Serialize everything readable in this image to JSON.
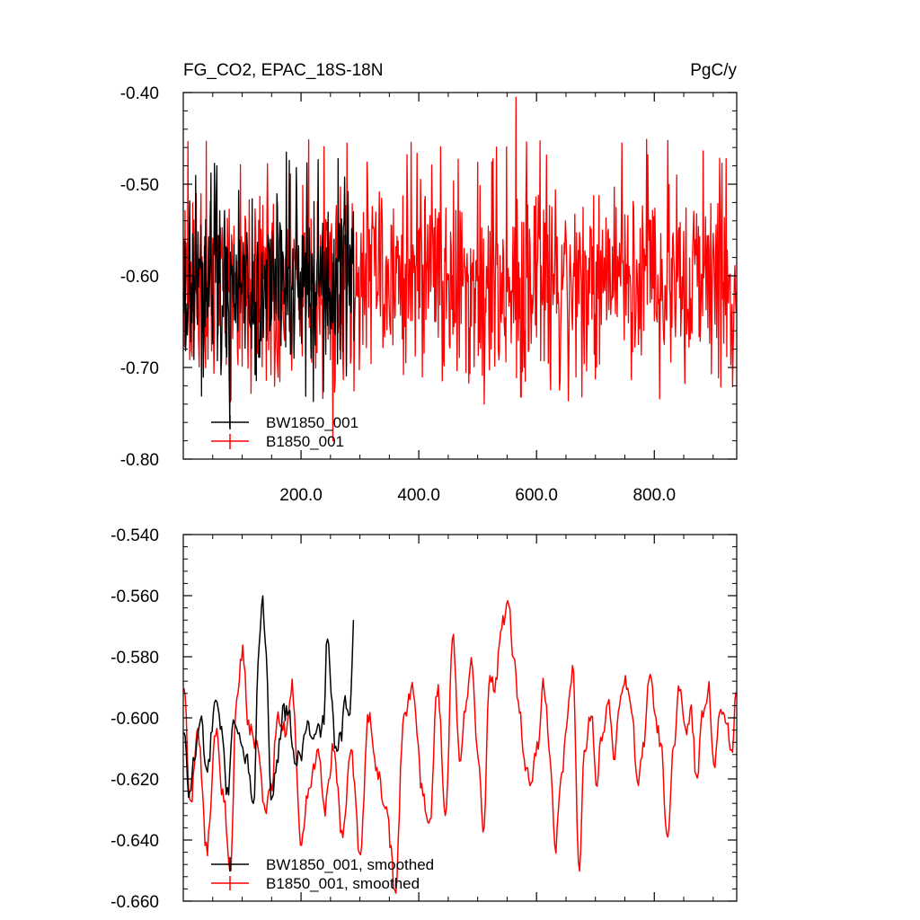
{
  "chart_data": [
    {
      "type": "line",
      "title": "FG_CO2, EPAC_18S-18N",
      "units": "PgC/y",
      "xlabel": "",
      "ylabel": "",
      "xlim": [
        0,
        940
      ],
      "ylim": [
        -0.8,
        -0.4
      ],
      "xticks": [
        200,
        400,
        600,
        800
      ],
      "xtick_labels": [
        "200.0",
        "400.0",
        "600.0",
        "800.0"
      ],
      "yticks": [
        -0.4,
        -0.5,
        -0.6,
        -0.7,
        -0.8
      ],
      "ytick_labels": [
        "-0.40",
        "-0.50",
        "-0.60",
        "-0.70",
        "-0.80"
      ],
      "legend_position": "bottom-left",
      "series": [
        {
          "name": "BW1850_001",
          "color": "#000000",
          "x_range": [
            1,
            290
          ],
          "mean": -0.61,
          "typical_range": [
            -0.7,
            -0.49
          ],
          "min": -0.765,
          "max": -0.465,
          "note_values": "annual values, noisy"
        },
        {
          "name": "B1850_001",
          "color": "#ff0000",
          "x_range": [
            1,
            940
          ],
          "mean": -0.605,
          "typical_range": [
            -0.68,
            -0.52
          ],
          "min": -0.78,
          "max": -0.405
        }
      ]
    },
    {
      "type": "line",
      "title": "",
      "xlabel": "",
      "ylabel": "",
      "xlim": [
        0,
        940
      ],
      "ylim": [
        -0.66,
        -0.54
      ],
      "yticks": [
        -0.54,
        -0.56,
        -0.58,
        -0.6,
        -0.62,
        -0.64,
        -0.66
      ],
      "ytick_labels": [
        "-0.540",
        "-0.560",
        "-0.580",
        "-0.600",
        "-0.620",
        "-0.640",
        "-0.660"
      ],
      "legend_position": "bottom-left",
      "series": [
        {
          "name": "BW1850_001, smoothed",
          "color": "#000000",
          "x_range": [
            1,
            290
          ],
          "anchors": [
            [
              1,
              -0.605
            ],
            [
              10,
              -0.625
            ],
            [
              20,
              -0.612
            ],
            [
              30,
              -0.6
            ],
            [
              40,
              -0.618
            ],
            [
              55,
              -0.595
            ],
            [
              65,
              -0.605
            ],
            [
              75,
              -0.625
            ],
            [
              85,
              -0.6
            ],
            [
              100,
              -0.61
            ],
            [
              110,
              -0.615
            ],
            [
              120,
              -0.63
            ],
            [
              128,
              -0.578
            ],
            [
              135,
              -0.563
            ],
            [
              140,
              -0.575
            ],
            [
              150,
              -0.628
            ],
            [
              160,
              -0.612
            ],
            [
              170,
              -0.598
            ],
            [
              180,
              -0.6
            ],
            [
              190,
              -0.615
            ],
            [
              200,
              -0.612
            ],
            [
              210,
              -0.602
            ],
            [
              220,
              -0.608
            ],
            [
              230,
              -0.604
            ],
            [
              238,
              -0.602
            ],
            [
              245,
              -0.572
            ],
            [
              252,
              -0.596
            ],
            [
              260,
              -0.612
            ],
            [
              268,
              -0.606
            ],
            [
              275,
              -0.595
            ],
            [
              282,
              -0.598
            ],
            [
              290,
              -0.568
            ]
          ]
        },
        {
          "name": "B1850_001, smoothed",
          "color": "#ff0000",
          "x_range": [
            1,
            940
          ],
          "anchors": [
            [
              1,
              -0.59
            ],
            [
              12,
              -0.628
            ],
            [
              25,
              -0.605
            ],
            [
              40,
              -0.643
            ],
            [
              55,
              -0.605
            ],
            [
              70,
              -0.628
            ],
            [
              80,
              -0.653
            ],
            [
              90,
              -0.595
            ],
            [
              100,
              -0.578
            ],
            [
              112,
              -0.603
            ],
            [
              125,
              -0.61
            ],
            [
              140,
              -0.63
            ],
            [
              150,
              -0.622
            ],
            [
              160,
              -0.6
            ],
            [
              175,
              -0.605
            ],
            [
              185,
              -0.59
            ],
            [
              200,
              -0.642
            ],
            [
              215,
              -0.62
            ],
            [
              230,
              -0.61
            ],
            [
              240,
              -0.63
            ],
            [
              255,
              -0.61
            ],
            [
              270,
              -0.638
            ],
            [
              285,
              -0.612
            ],
            [
              300,
              -0.643
            ],
            [
              315,
              -0.6
            ],
            [
              330,
              -0.618
            ],
            [
              345,
              -0.632
            ],
            [
              360,
              -0.655
            ],
            [
              375,
              -0.6
            ],
            [
              390,
              -0.59
            ],
            [
              405,
              -0.622
            ],
            [
              418,
              -0.635
            ],
            [
              432,
              -0.59
            ],
            [
              445,
              -0.632
            ],
            [
              458,
              -0.575
            ],
            [
              470,
              -0.615
            ],
            [
              480,
              -0.595
            ],
            [
              490,
              -0.58
            ],
            [
              500,
              -0.61
            ],
            [
              510,
              -0.635
            ],
            [
              520,
              -0.588
            ],
            [
              530,
              -0.59
            ],
            [
              540,
              -0.57
            ],
            [
              552,
              -0.563
            ],
            [
              562,
              -0.582
            ],
            [
              572,
              -0.6
            ],
            [
              582,
              -0.618
            ],
            [
              592,
              -0.62
            ],
            [
              602,
              -0.608
            ],
            [
              612,
              -0.588
            ],
            [
              622,
              -0.61
            ],
            [
              632,
              -0.642
            ],
            [
              642,
              -0.62
            ],
            [
              652,
              -0.6
            ],
            [
              662,
              -0.585
            ],
            [
              672,
              -0.65
            ],
            [
              682,
              -0.61
            ],
            [
              692,
              -0.598
            ],
            [
              702,
              -0.62
            ],
            [
              712,
              -0.605
            ],
            [
              722,
              -0.592
            ],
            [
              732,
              -0.615
            ],
            [
              742,
              -0.595
            ],
            [
              752,
              -0.588
            ],
            [
              762,
              -0.6
            ],
            [
              772,
              -0.622
            ],
            [
              782,
              -0.608
            ],
            [
              792,
              -0.585
            ],
            [
              802,
              -0.6
            ],
            [
              812,
              -0.61
            ],
            [
              822,
              -0.64
            ],
            [
              832,
              -0.612
            ],
            [
              842,
              -0.588
            ],
            [
              852,
              -0.605
            ],
            [
              862,
              -0.598
            ],
            [
              872,
              -0.62
            ],
            [
              882,
              -0.6
            ],
            [
              892,
              -0.59
            ],
            [
              902,
              -0.615
            ],
            [
              912,
              -0.595
            ],
            [
              922,
              -0.6
            ],
            [
              932,
              -0.61
            ],
            [
              940,
              -0.59
            ]
          ]
        }
      ]
    }
  ]
}
